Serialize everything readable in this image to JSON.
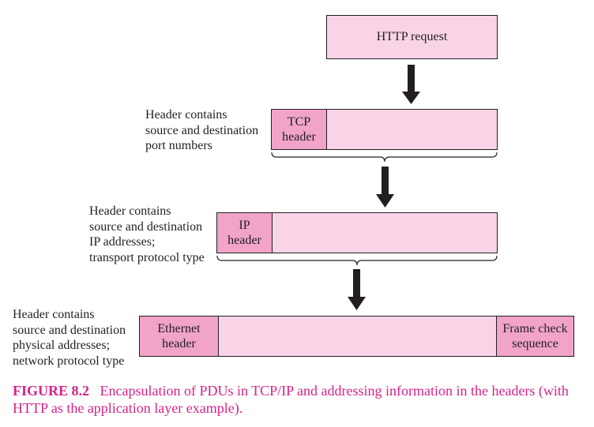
{
  "http": {
    "label": "HTTP request"
  },
  "tcp": {
    "header_line1": "TCP",
    "header_line2": "header",
    "note": [
      "Header contains",
      "source and destination",
      "port numbers"
    ]
  },
  "ip": {
    "header_line1": "IP",
    "header_line2": "header",
    "note": [
      "Header contains",
      "source and destination",
      "IP addresses;",
      "transport protocol type"
    ]
  },
  "ethernet": {
    "header_line1": "Ethernet",
    "header_line2": "header",
    "trailer_line1": "Frame check",
    "trailer_line2": "sequence",
    "note": [
      "Header contains",
      "source and destination",
      "physical addresses;",
      "network protocol type"
    ]
  },
  "caption": {
    "label": "FIGURE 8.2",
    "text": "Encapsulation of PDUs in TCP/IP and addressing information in the headers (with HTTP as the application layer example)."
  },
  "colors": {
    "payload_fill": "#f9d4e6",
    "header_fill": "#f1a3c8",
    "stroke": "#231f20",
    "caption": "#d6228a"
  }
}
